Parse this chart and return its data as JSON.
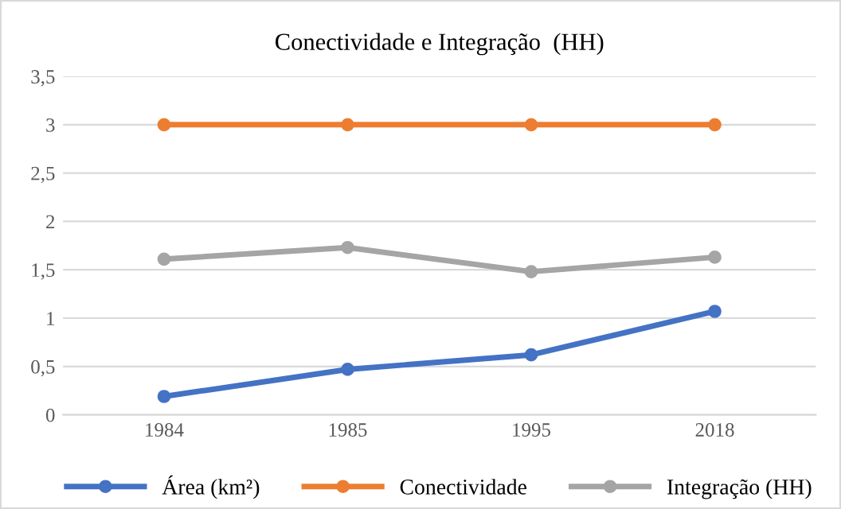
{
  "chart_data": {
    "type": "line",
    "title": "Conectividade e Integração  (HH)",
    "categories": [
      "1984",
      "1985",
      "1995",
      "2018"
    ],
    "series": [
      {
        "name": "Área (km²)",
        "color": "#4472c4",
        "values": [
          0.19,
          0.47,
          0.62,
          1.07
        ]
      },
      {
        "name": "Conectividade",
        "color": "#ed7d31",
        "values": [
          3,
          3,
          3,
          3
        ]
      },
      {
        "name": "Integração (HH)",
        "color": "#a5a5a5",
        "values": [
          1.61,
          1.73,
          1.48,
          1.63
        ]
      }
    ],
    "ylim": [
      0,
      3.5
    ],
    "yticks": [
      0,
      {
        "value": 0.5,
        "label": "0,5"
      },
      1,
      {
        "value": 1.5,
        "label": "1,5"
      },
      2,
      {
        "value": 2.5,
        "label": "2,5"
      },
      3,
      {
        "value": 3.5,
        "label": "3,5"
      }
    ],
    "grid": "y",
    "legend": "bottom",
    "marker": "circle",
    "line_style": "solid"
  }
}
